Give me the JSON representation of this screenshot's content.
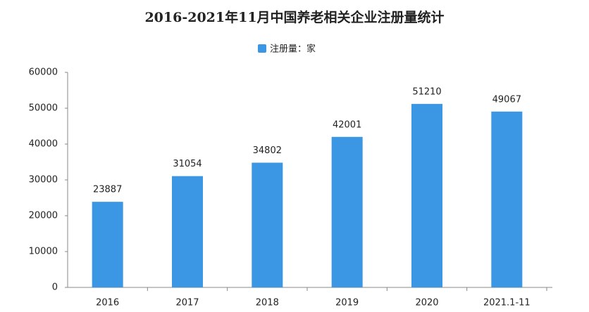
{
  "chart_data": {
    "type": "bar",
    "title": "2016-2021年11月中国养老相关企业注册量统计",
    "categories": [
      "2016",
      "2017",
      "2018",
      "2019",
      "2020",
      "2021.1-11"
    ],
    "series": [
      {
        "name": "注册量：家",
        "color": "#3b97e3",
        "values": [
          23887,
          31054,
          34802,
          42001,
          51210,
          49067
        ]
      }
    ],
    "ylim": [
      0,
      60000
    ],
    "yticks": [
      0,
      10000,
      20000,
      30000,
      40000,
      50000,
      60000
    ],
    "grid": false
  }
}
